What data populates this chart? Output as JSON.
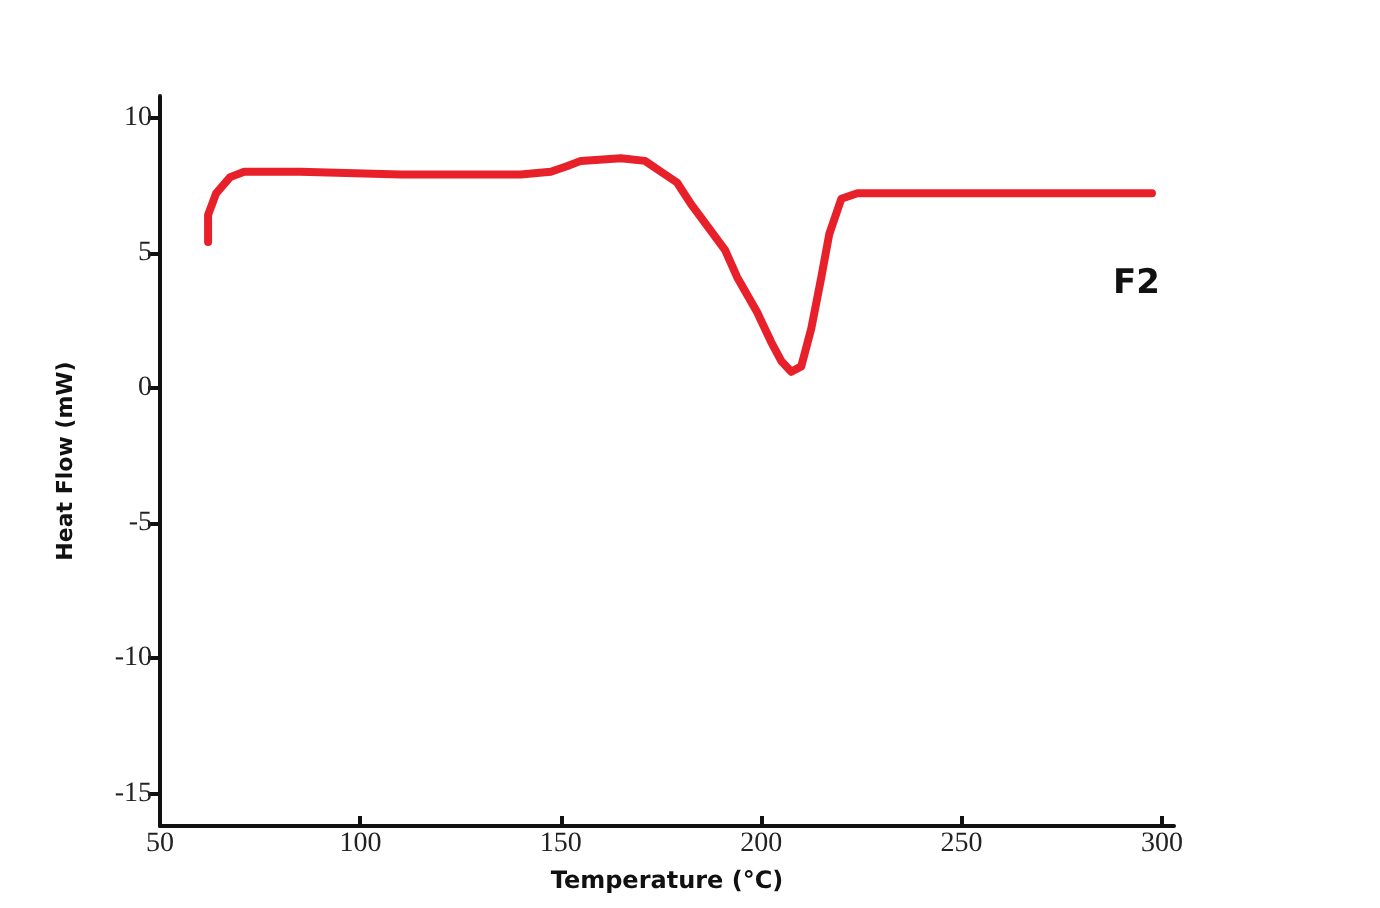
{
  "chart_data": {
    "type": "line",
    "xlabel": "Temperature (°C)",
    "ylabel": "Heat Flow (mW)",
    "annotations": [
      "F2"
    ],
    "xlim": [
      50,
      303
    ],
    "xticks": [
      50,
      100,
      150,
      200,
      250,
      300
    ],
    "ylim": [
      -16.2,
      10.8
    ],
    "yticks": [
      -15,
      -10,
      -5,
      0,
      5,
      10
    ],
    "marker": "none",
    "line_style": "solid",
    "series": [
      {
        "color": "#e8202a",
        "x": [
          62,
          62,
          64,
          67.5,
          71,
          85,
          110,
          140,
          147.5,
          151.5,
          155,
          165,
          171,
          175,
          179,
          182.5,
          187.5,
          191,
          194,
          199,
          202.5,
          205,
          207.5,
          210,
          212.5,
          215,
          217,
          220,
          224,
          260,
          297.5
        ],
        "values": [
          5.4,
          6.4,
          7.2,
          7.8,
          8.0,
          8.0,
          7.9,
          7.9,
          8.0,
          8.2,
          8.4,
          8.5,
          8.4,
          8.0,
          7.6,
          6.8,
          5.8,
          5.1,
          4.1,
          2.8,
          1.7,
          1.0,
          0.6,
          0.8,
          2.2,
          4.1,
          5.7,
          7.0,
          7.2,
          7.2,
          7.2
        ]
      }
    ]
  }
}
